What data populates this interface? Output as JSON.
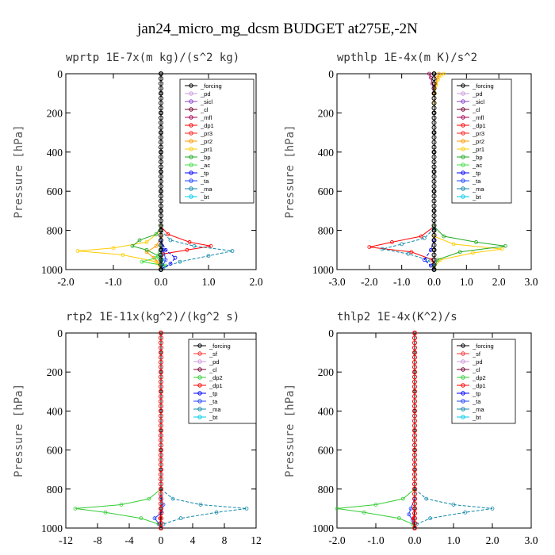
{
  "title": "jan24_micro_mg_dcsm  BUDGET at275E,-2N",
  "colors": {
    "_forcing": "#000000",
    "_pd": "#cc99dd",
    "_sicl": "#8844cc",
    "_cl": "#770033",
    "_mfl": "#aa0055",
    "_dp1": "#ff0000",
    "_pr3": "#ff2222",
    "_pr2": "#ff9900",
    "_pr1": "#ffcc00",
    "_bp": "#22aa22",
    "_ac": "#44dd44",
    "_tp": "#0000ff",
    "_ta": "#2244ff",
    "_ma": "#1188aa",
    "_bt": "#00ccee",
    "_sf": "#ff3333",
    "_dp2": "#33cc33"
  },
  "chart_data": [
    {
      "type": "line",
      "title": "wprtp   1E-7x(m kg)/(s^2 kg)",
      "ylabel": "Pressure [hPa]",
      "xlim": [
        -2.0,
        2.0
      ],
      "ylim": [
        1000,
        0
      ],
      "xticks": [
        -2.0,
        -1.0,
        0.0,
        1.0,
        2.0
      ],
      "xtick_labels": [
        "-2.0",
        "-1.0",
        "0.0",
        "1.0",
        "2.0"
      ],
      "yticks": [
        0,
        200,
        400,
        600,
        800,
        1000
      ],
      "ytick_labels": [
        "0",
        "200",
        "400",
        "600",
        "800",
        "1000"
      ],
      "legend": [
        "_forcing",
        "_pd",
        "_sicl",
        "_cl",
        "_mfl",
        "_dp1",
        "_pr3",
        "_pr2",
        "_pr1",
        "_bp",
        "_ac",
        "_tp",
        "_ta",
        "_ma",
        "_bt"
      ],
      "series": [
        {
          "name": "_dp1",
          "p": [
            780,
            820,
            860,
            880,
            900,
            920,
            960,
            1000
          ],
          "v": [
            0.0,
            0.15,
            0.6,
            1.05,
            0.55,
            0.05,
            0.0,
            0.0
          ]
        },
        {
          "name": "_pr1",
          "p": [
            800,
            860,
            890,
            905,
            925,
            960,
            1000
          ],
          "v": [
            0.0,
            -0.3,
            -1.0,
            -1.75,
            -0.8,
            -0.1,
            0.0
          ]
        },
        {
          "name": "_pr2",
          "p": [
            830,
            880,
            910,
            940,
            975,
            1000
          ],
          "v": [
            0.0,
            -0.1,
            -0.3,
            -0.15,
            -0.02,
            0.0
          ]
        },
        {
          "name": "_bp",
          "p": [
            780,
            820,
            850,
            880,
            900,
            930,
            960,
            1000
          ],
          "v": [
            0.0,
            -0.1,
            -0.45,
            -0.6,
            -0.3,
            -0.05,
            0.0,
            0.0
          ]
        },
        {
          "name": "_ac",
          "p": [
            880,
            940,
            960,
            980,
            1000
          ],
          "v": [
            0.0,
            -0.1,
            -0.4,
            0.1,
            0.0
          ]
        },
        {
          "name": "_ma",
          "p": [
            800,
            850,
            880,
            905,
            930,
            960,
            990,
            1000
          ],
          "v": [
            0.0,
            0.2,
            0.7,
            1.5,
            1.0,
            0.4,
            0.05,
            0.0
          ]
        },
        {
          "name": "_tp",
          "p": [
            850,
            900,
            940,
            970,
            1000
          ],
          "v": [
            0.0,
            0.1,
            0.3,
            0.2,
            0.0
          ]
        },
        {
          "name": "_ta",
          "p": [
            850,
            900,
            950,
            1000
          ],
          "v": [
            0.0,
            0.05,
            0.1,
            0.0
          ]
        },
        {
          "name": "_bt",
          "p": [
            900,
            950,
            1000
          ],
          "v": [
            0.0,
            0.03,
            0.0
          ]
        },
        {
          "name": "_forcing",
          "p": [
            0,
            100,
            200,
            300,
            400,
            500,
            600,
            700,
            800,
            900,
            1000
          ],
          "v": [
            0,
            0,
            0,
            0,
            0,
            0,
            0,
            0,
            0,
            0,
            0
          ]
        }
      ]
    },
    {
      "type": "line",
      "title": "wpthlp   1E-4x(m K)/s^2",
      "ylabel": "Pressure [hPa]",
      "xlim": [
        -3.0,
        3.0
      ],
      "ylim": [
        1000,
        0
      ],
      "xticks": [
        -3.0,
        -2.0,
        -1.0,
        0.0,
        1.0,
        2.0,
        3.0
      ],
      "xtick_labels": [
        "-3.0",
        "-2.0",
        "-1.0",
        "0.0",
        "1.0",
        "2.0",
        "3.0"
      ],
      "yticks": [
        0,
        200,
        400,
        600,
        800,
        1000
      ],
      "ytick_labels": [
        "0",
        "200",
        "400",
        "600",
        "800",
        "1000"
      ],
      "legend": [
        "_forcing",
        "_pd",
        "_sicl",
        "_cl",
        "_mfl",
        "_dp1",
        "_pr3",
        "_pr2",
        "_pr1",
        "_bp",
        "_ac",
        "_tp",
        "_ta",
        "_ma",
        "_bt"
      ],
      "series": [
        {
          "name": "_pr1",
          "p": [
            0,
            10,
            30,
            60,
            100,
            150
          ],
          "v": [
            0.3,
            0.2,
            0.12,
            0.06,
            0.02,
            0.0
          ]
        },
        {
          "name": "_pr2",
          "p": [
            0,
            20,
            50,
            100
          ],
          "v": [
            0.15,
            0.1,
            0.05,
            0.0
          ]
        },
        {
          "name": "_mfl",
          "p": [
            0,
            20,
            50,
            100
          ],
          "v": [
            -0.15,
            -0.1,
            -0.05,
            0.0
          ]
        },
        {
          "name": "_dp1",
          "p": [
            780,
            830,
            860,
            885,
            910,
            950,
            1000
          ],
          "v": [
            0.0,
            -0.4,
            -1.3,
            -2.0,
            -0.7,
            -0.05,
            0.0
          ]
        },
        {
          "name": "_pr1",
          "p": [
            830,
            870,
            895,
            915,
            950,
            990
          ],
          "v": [
            0.0,
            0.6,
            2.1,
            1.2,
            0.2,
            0.0
          ]
        },
        {
          "name": "_bp",
          "p": [
            780,
            830,
            860,
            880,
            910,
            950,
            1000
          ],
          "v": [
            0.0,
            0.3,
            1.3,
            2.2,
            0.8,
            0.1,
            0.0
          ]
        },
        {
          "name": "_ma",
          "p": [
            790,
            840,
            870,
            895,
            920,
            950,
            980,
            1000
          ],
          "v": [
            0.0,
            -0.3,
            -1.0,
            -1.6,
            -0.8,
            -0.2,
            0.0,
            0.0
          ]
        },
        {
          "name": "_tp",
          "p": [
            850,
            900,
            950,
            980,
            1000
          ],
          "v": [
            0.0,
            -0.1,
            -0.3,
            -0.1,
            0.0
          ]
        },
        {
          "name": "_forcing",
          "p": [
            0,
            100,
            200,
            300,
            400,
            500,
            600,
            700,
            800,
            900,
            1000
          ],
          "v": [
            0,
            0,
            0,
            0,
            0,
            0,
            0,
            0,
            0,
            0,
            0
          ]
        }
      ]
    },
    {
      "type": "line",
      "title": "rtp2   1E-11x(kg^2)/(kg^2 s)",
      "ylabel": "Pressure [hPa]",
      "xlim": [
        -12,
        12
      ],
      "ylim": [
        1000,
        0
      ],
      "xticks": [
        -12,
        -8,
        -4,
        0,
        4,
        8,
        12
      ],
      "xtick_labels": [
        "-12",
        "-8",
        "-4",
        "0",
        "4",
        "8",
        "12"
      ],
      "yticks": [
        0,
        200,
        400,
        600,
        800,
        1000
      ],
      "ytick_labels": [
        "0",
        "200",
        "400",
        "600",
        "800",
        "1000"
      ],
      "legend": [
        "_forcing",
        "_sf",
        "_pd",
        "_cl",
        "_dp2",
        "_dp1",
        "_tp",
        "_ta",
        "_ma",
        "_bt"
      ],
      "series": [
        {
          "name": "_dp2",
          "p": [
            800,
            850,
            880,
            900,
            920,
            950,
            980,
            1000
          ],
          "v": [
            0.0,
            -1.5,
            -5.0,
            -10.8,
            -7.0,
            -2.5,
            -0.3,
            0.0
          ]
        },
        {
          "name": "_ma",
          "p": [
            800,
            850,
            880,
            900,
            920,
            950,
            980,
            1000
          ],
          "v": [
            0.0,
            1.5,
            5.0,
            10.8,
            7.0,
            2.5,
            0.3,
            0.0
          ]
        },
        {
          "name": "_ta",
          "p": [
            840,
            880,
            920,
            950,
            980,
            1000
          ],
          "v": [
            0.0,
            0.3,
            0.1,
            -0.8,
            -0.2,
            0.0
          ]
        },
        {
          "name": "_dp1",
          "p": [
            900,
            950,
            1000
          ],
          "v": [
            0.0,
            -0.1,
            0.0
          ]
        },
        {
          "name": "_forcing",
          "p": [
            0,
            100,
            200,
            300,
            400,
            500,
            600,
            700,
            800,
            900,
            1000
          ],
          "v": [
            0,
            0,
            0,
            0,
            0,
            0,
            0,
            0,
            0,
            0,
            0
          ]
        }
      ]
    },
    {
      "type": "line",
      "title": "thlp2   1E-4x(K^2)/s",
      "ylabel": "Pressure [hPa]",
      "xlim": [
        -2.0,
        3.0
      ],
      "ylim": [
        1000,
        0
      ],
      "xticks": [
        -2.0,
        -1.0,
        0.0,
        1.0,
        2.0,
        3.0
      ],
      "xtick_labels": [
        "-2.0",
        "-1.0",
        "0.0",
        "1.0",
        "2.0",
        "3.0"
      ],
      "yticks": [
        0,
        200,
        400,
        600,
        800,
        1000
      ],
      "ytick_labels": [
        "0",
        "200",
        "400",
        "600",
        "800",
        "1000"
      ],
      "legend": [
        "_forcing",
        "_sf",
        "_pd",
        "_cl",
        "_dp2",
        "_dp1",
        "_tp",
        "_ta",
        "_ma",
        "_bt"
      ],
      "series": [
        {
          "name": "_dp2",
          "p": [
            800,
            850,
            880,
            900,
            920,
            950,
            980,
            1000
          ],
          "v": [
            0.0,
            -0.3,
            -1.0,
            -2.0,
            -1.3,
            -0.4,
            -0.05,
            0.0
          ]
        },
        {
          "name": "_ma",
          "p": [
            800,
            850,
            880,
            900,
            920,
            950,
            980,
            1000
          ],
          "v": [
            0.0,
            0.3,
            1.0,
            2.0,
            1.3,
            0.4,
            0.05,
            0.0
          ]
        },
        {
          "name": "_ta",
          "p": [
            850,
            900,
            930,
            960,
            1000
          ],
          "v": [
            0.0,
            -0.1,
            -0.15,
            -0.05,
            0.0
          ]
        },
        {
          "name": "_dp1",
          "p": [
            900,
            950,
            1000
          ],
          "v": [
            0.0,
            -0.03,
            0.0
          ]
        },
        {
          "name": "_forcing",
          "p": [
            0,
            100,
            200,
            300,
            400,
            500,
            600,
            700,
            800,
            900,
            1000
          ],
          "v": [
            0,
            0,
            0,
            0,
            0,
            0,
            0,
            0,
            0,
            0,
            0
          ]
        }
      ]
    }
  ]
}
